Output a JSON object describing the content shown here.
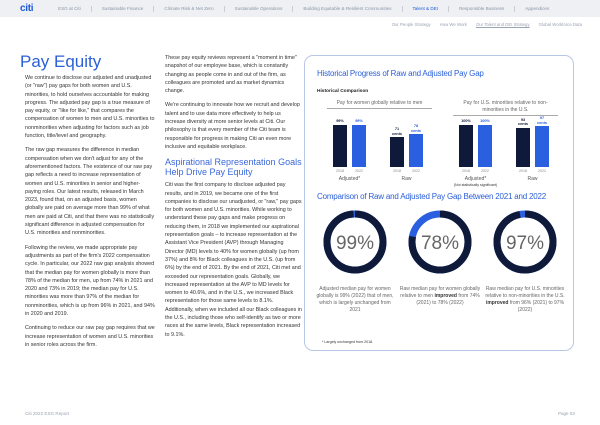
{
  "nav": {
    "logo": "citi",
    "items": [
      "ESG at Citi",
      "Sustainable Finance",
      "Climate Risk & Net Zero",
      "Sustainable Operations",
      "Building Equitable & Resilient Communities",
      "Talent & DEI",
      "Responsible Business",
      "Appendices"
    ],
    "active_index": 5
  },
  "subnav": {
    "items": [
      "Our People Strategy",
      "How We Work",
      "Our Talent and DEI Strategy",
      "Global Workforce Data"
    ],
    "active_index": 2
  },
  "left": {
    "title": "Pay Equity",
    "p1": "We continue to disclose our adjusted and unadjusted (or \"raw\") pay gaps for both women and U.S. minorities, to hold ourselves accountable for making progress. The adjusted pay gap is a true measure of pay equity, or \"like for like,\" that compares the compensation of women to men and U.S. minorities to nonminorities when adjusting for factors such as job function, title/level and geography.",
    "p2": "The raw gap measures the difference in median compensation when we don't adjust for any of the aforementioned factors. The existence of our raw pay gap reflects a need to increase representation of women and U.S. minorities in senior and higher-paying roles. Our latest results, released in March 2023, found that, on an adjusted basis, women globally are paid on average more than 99% of what men are paid at Citi, and that there was no statistically significant difference in adjusted compensation for U.S. minorities and nonminorities.",
    "p3": "Following the review, we made appropriate pay adjustments as part of the firm's 2022 compensation cycle. In particular, our 2022 raw gap analysis showed that the median pay for women globally is more than 78% of the median for men, up from 74% in 2021 and 2020 and 73% in 2019; the median pay for U.S. minorities was more than 97% of the median for nonminorities, which is up from 96% in 2021, and 94% in 2020 and 2019.",
    "p4": "Continuing to reduce our raw pay gap requires that we increase representation of women and U.S. minorities in senior roles across the firm."
  },
  "middle": {
    "p1": "These pay equity reviews represent a \"moment in time\" snapshot of our employee base, which is constantly changing as people come in and out of the firm, as colleagues are promoted and as market dynamics change.",
    "p2": "We're continuing to innovate how we recruit and develop talent and to use data more effectively to help us increase diversity at more senior levels at Citi. Our philosophy is that every member of the Citi team is responsible for progress in making Citi an even more inclusive and equitable workplace.",
    "heading": "Aspirational Representation Goals Help Drive Pay Equity",
    "p3": "Citi was the first company to disclose adjusted pay results, and in 2019, we became one of the first companies to disclose our unadjusted, or \"raw,\" pay gaps for both women and U.S. minorities. While working to understand these pay gaps and make progress on reducing them, in 2018 we implemented our aspirational representation goals – to increase representation at the Assistant Vice President (AVP) through Managing Director (MD) levels to 40% for women globally (up from 37%) and 8% for Black colleagues in the U.S. (up from 6%) by the end of 2021. By the end of 2021, Citi met and exceeded our representation goals. Globally, we increased representation at the AVP to MD levels for women to 40.6%, and in the U.S., we increased Black representation for those same levels to 8.1%. Additionally, when we included all our Black colleagues in the U.S., including those who self-identify as two or more races at the same levels, Black representation increased to 9.1%."
  },
  "card": {
    "title": "Historical Progress of Raw and Adjusted Pay Gap",
    "subtitle": "Historical Comparison",
    "title2": "Comparison of Raw and Adjusted Pay Gap Between 2021 and 2022",
    "footnote": "* Largely unchanged from 2018.",
    "donut_captions": [
      {
        "pre": "Adjusted median pay for women globally is 99% (2022) that of men, which is largely unchanged from 2021",
        "bold": "",
        "post": ""
      },
      {
        "pre": "Raw median pay for women globally relative to men ",
        "bold": "improved",
        "post": " from 74% (2021) to 78% (2022)"
      },
      {
        "pre": "Raw median pay for U.S. minorities relative to non-minorities in the U.S. ",
        "bold": "improved",
        "post": " from 96% (2021) to 97% (2022)"
      }
    ]
  },
  "chart_data": [
    {
      "type": "bar",
      "title": "Historical Comparison",
      "colors": {
        "2018": "#0f1a3a",
        "2022": "#2a5fe0"
      },
      "groups": [
        {
          "header": "Pay for women globally relative to men",
          "subgroups": [
            {
              "label": "Adjusted*",
              "note": "",
              "categories": [
                "2018",
                "2022"
              ],
              "values": [
                99,
                99
              ],
              "data_labels": [
                "99%",
                "99%"
              ]
            },
            {
              "label": "Raw",
              "note": "",
              "categories": [
                "2018",
                "2022"
              ],
              "values": [
                71,
                78
              ],
              "data_labels": [
                "71 cents",
                "78 cents"
              ]
            }
          ]
        },
        {
          "header": "Pay for U.S. minorities relative to non-minorities in the U.S.",
          "subgroups": [
            {
              "label": "Adjusted*",
              "note": "(Not statistically significant)",
              "categories": [
                "2018",
                "2022"
              ],
              "values": [
                100,
                100
              ],
              "data_labels": [
                "100%",
                "100%"
              ]
            },
            {
              "label": "Raw",
              "note": "",
              "categories": [
                "2018",
                "2022"
              ],
              "values": [
                93,
                97
              ],
              "data_labels": [
                "93 cents",
                "97 cents"
              ]
            }
          ]
        }
      ]
    },
    {
      "type": "pie",
      "variant": "donut",
      "values": [
        99,
        78,
        97
      ],
      "labels": [
        "99%",
        "78%",
        "97%"
      ],
      "colors": {
        "value": "#0f1a3a",
        "remainder": "#2a5fe0"
      }
    }
  ],
  "footer": {
    "left": "Citi 2022 ESG Report",
    "right": "Page 53"
  }
}
